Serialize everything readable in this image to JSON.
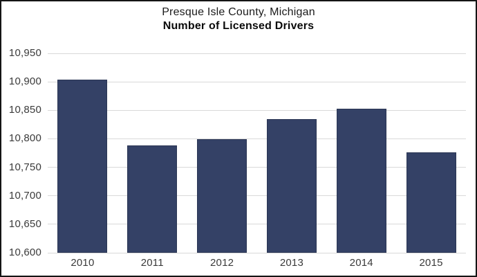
{
  "chart_data": {
    "type": "bar",
    "title": "Presque Isle County, Michigan",
    "subtitle": "Number of Licensed Drivers",
    "categories": [
      "2010",
      "2011",
      "2012",
      "2013",
      "2014",
      "2015"
    ],
    "values": [
      10904,
      10788,
      10799,
      10834,
      10853,
      10776
    ],
    "xlabel": "",
    "ylabel": "",
    "ylim": [
      10600,
      10950
    ],
    "ytick_step": 50,
    "ytick_labels": [
      "10,600",
      "10,650",
      "10,700",
      "10,750",
      "10,800",
      "10,850",
      "10,900",
      "10,950"
    ],
    "grid": true,
    "legend": "none",
    "colors": {
      "bar_fill": "#344166",
      "bar_border": "#2b3654",
      "gridline": "#d9d9d9",
      "tick_label": "#3a3a3a",
      "title": "#1a1a1a",
      "frame_border": "#141414",
      "background": "#ffffff"
    }
  }
}
